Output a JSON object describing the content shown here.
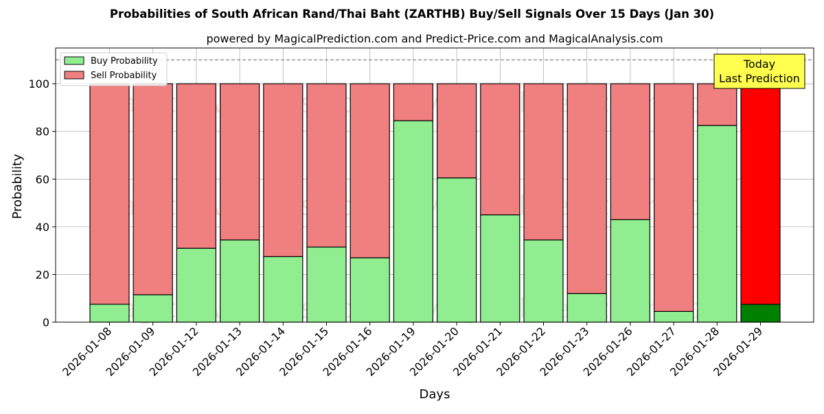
{
  "chart_data": {
    "type": "bar",
    "stacked": true,
    "title": "Probabilities of South African Rand/Thai Baht (ZARTHB) Buy/Sell Signals Over 15 Days (Jan 30)",
    "subtitle": "powered by MagicalPrediction.com and Predict-Price.com and MagicalAnalysis.com",
    "xlabel": "Days",
    "ylabel": "Probability",
    "ylim": [
      0,
      115
    ],
    "yticks": [
      0,
      20,
      40,
      60,
      80,
      100
    ],
    "reference_line": 110,
    "grid": true,
    "legend_position": "top-left",
    "categories": [
      "2026-01-08",
      "2026-01-09",
      "2026-01-12",
      "2026-01-13",
      "2026-01-14",
      "2026-01-15",
      "2026-01-16",
      "2026-01-19",
      "2026-01-20",
      "2026-01-21",
      "2026-01-22",
      "2026-01-23",
      "2026-01-26",
      "2026-01-27",
      "2026-01-28",
      "2026-01-29"
    ],
    "series": [
      {
        "name": "Buy Probability",
        "color": "#90ee90",
        "last_color": "#008000",
        "values": [
          7.5,
          11.5,
          31,
          34.5,
          27.5,
          31.5,
          27,
          84.5,
          60.5,
          45,
          34.5,
          12,
          43,
          4.5,
          82.5,
          7.5
        ]
      },
      {
        "name": "Sell Probability",
        "color": "#f08080",
        "last_color": "#ff0000",
        "values": [
          92.5,
          88.5,
          69,
          65.5,
          72.5,
          68.5,
          73,
          15.5,
          39.5,
          55,
          65.5,
          88,
          57,
          95.5,
          17.5,
          92.5
        ]
      }
    ],
    "annotation": {
      "lines": [
        "Today",
        "Last Prediction"
      ],
      "color": "#ffff4d"
    },
    "watermarks": [
      "MagicalAnalysis.com",
      "MagicalPrediction.com",
      "MagicalAnalysis.com",
      "MagicalPrediction.com",
      "MagicalAnalysis.com",
      "MagicalPrediction.com"
    ]
  }
}
